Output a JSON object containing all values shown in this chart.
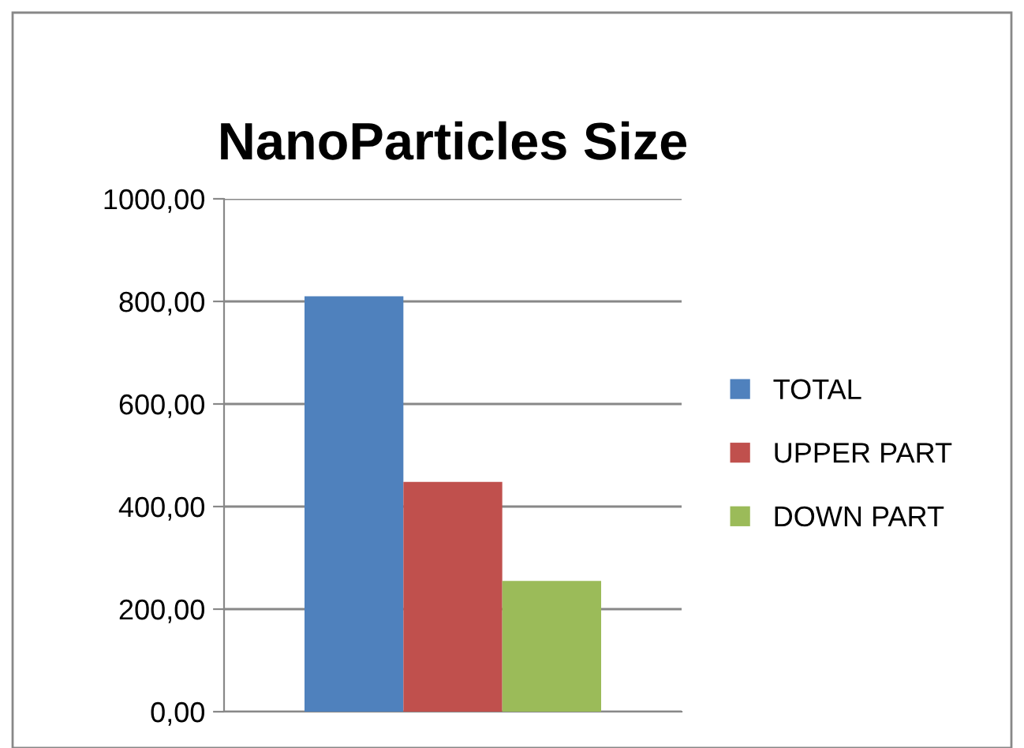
{
  "chart_data": {
    "type": "bar",
    "title": "NanoParticles Size",
    "categories": [
      null
    ],
    "series": [
      {
        "name": "TOTAL",
        "color": "#4f81bd",
        "values": [
          810
        ]
      },
      {
        "name": "UPPER PART",
        "color": "#c0504d",
        "values": [
          448
        ]
      },
      {
        "name": "DOWN PART",
        "color": "#9bbb59",
        "values": [
          255
        ]
      }
    ],
    "ylim": [
      0,
      1000
    ],
    "yticks": [
      {
        "value": 0,
        "label": "0,00"
      },
      {
        "value": 200,
        "label": "200,00"
      },
      {
        "value": 400,
        "label": "400,00"
      },
      {
        "value": 600,
        "label": "600,00"
      },
      {
        "value": 800,
        "label": "800,00"
      },
      {
        "value": 1000,
        "label": "1000,00"
      }
    ],
    "grid": "y",
    "legend": "right"
  }
}
